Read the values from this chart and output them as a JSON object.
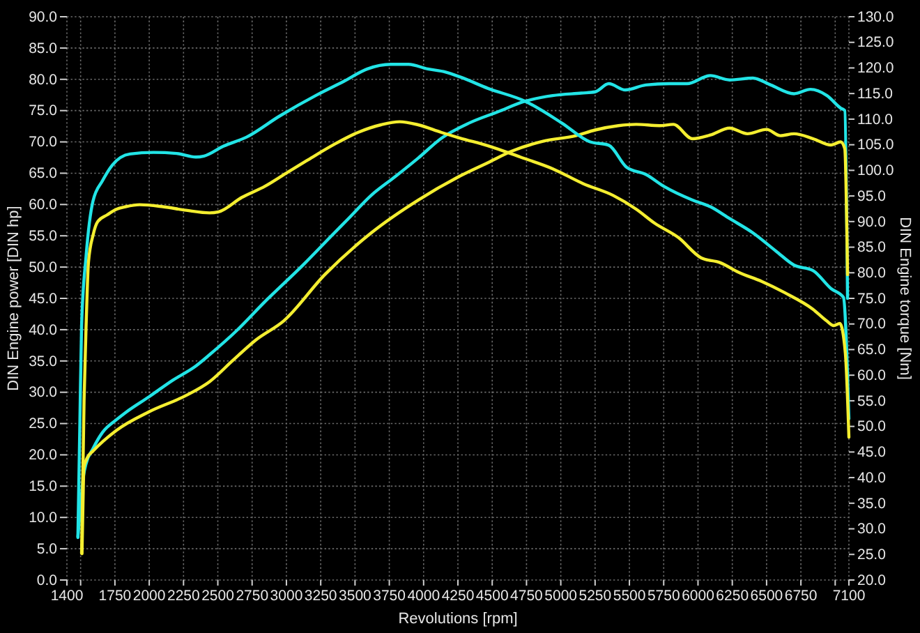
{
  "chart_data": {
    "type": "line",
    "xlabel": "Revolutions [rpm]",
    "ylabel": "DIN Engine power [DIN hp]",
    "y2label": "DIN Engine torque [Nm]",
    "xlim": [
      1400,
      7100
    ],
    "xticks": [
      1400,
      {
        "value": 1500,
        "label": null
      },
      1750,
      2000,
      2250,
      2500,
      2750,
      3000,
      3250,
      3500,
      3750,
      4000,
      4250,
      4500,
      4750,
      5000,
      5250,
      5500,
      5750,
      6000,
      6250,
      6500,
      6750,
      {
        "value": 7000,
        "label": null
      },
      7100
    ],
    "ylim": [
      0,
      90
    ],
    "yticks": [
      {
        "value": 0,
        "label": "0.0"
      },
      {
        "value": 5,
        "label": "5.0"
      },
      {
        "value": 10,
        "label": "10.0"
      },
      {
        "value": 15,
        "label": "15.0"
      },
      {
        "value": 20,
        "label": "20.0"
      },
      {
        "value": 25,
        "label": "25.0"
      },
      {
        "value": 30,
        "label": "30.0"
      },
      {
        "value": 35,
        "label": "35.0"
      },
      {
        "value": 40,
        "label": "40.0"
      },
      {
        "value": 45,
        "label": "45.0"
      },
      {
        "value": 50,
        "label": "50.0"
      },
      {
        "value": 55,
        "label": "55.0"
      },
      {
        "value": 60,
        "label": "60.0"
      },
      {
        "value": 65,
        "label": "65.0"
      },
      {
        "value": 70,
        "label": "70.0"
      },
      {
        "value": 75,
        "label": "75.0"
      },
      {
        "value": 80,
        "label": "80.0"
      },
      {
        "value": 85,
        "label": "85.0"
      },
      {
        "value": 90,
        "label": "90.0"
      }
    ],
    "y2lim": [
      20,
      130
    ],
    "y2ticks": [
      {
        "value": 20,
        "label": "20.0"
      },
      {
        "value": 25,
        "label": "25.0"
      },
      {
        "value": 30,
        "label": "30.0"
      },
      {
        "value": 35,
        "label": "35.0"
      },
      {
        "value": 40,
        "label": "40.0"
      },
      {
        "value": 45,
        "label": "45.0"
      },
      {
        "value": 50,
        "label": "50.0"
      },
      {
        "value": 55,
        "label": "55.0"
      },
      {
        "value": 60,
        "label": "60.0"
      },
      {
        "value": 65,
        "label": "65.0"
      },
      {
        "value": 70,
        "label": "70.0"
      },
      {
        "value": 75,
        "label": "75.0"
      },
      {
        "value": 80,
        "label": "80.0"
      },
      {
        "value": 85,
        "label": "85.0"
      },
      {
        "value": 90,
        "label": "90.0"
      },
      {
        "value": 95,
        "label": "95.0"
      },
      {
        "value": 100,
        "label": "100.0"
      },
      {
        "value": 105,
        "label": "105.0"
      },
      {
        "value": 110,
        "label": "110.0"
      },
      {
        "value": 115,
        "label": "115.0"
      },
      {
        "value": 120,
        "label": "120.0"
      },
      {
        "value": 125,
        "label": "125.0"
      },
      {
        "value": 130,
        "label": "130.0"
      }
    ],
    "grid": true,
    "series": [
      {
        "color": "#22e4e6",
        "x": [
          1480,
          1500,
          1520,
          1540,
          1590,
          1660,
          1760,
          1830,
          2000,
          2170,
          2340,
          2440,
          2640,
          2840,
          3120,
          3320,
          3450,
          3620,
          3790,
          3960,
          4130,
          4330,
          4540,
          4740,
          4940,
          5150,
          5250,
          5350,
          5470,
          5620,
          5790,
          5920,
          6090,
          6230,
          6400,
          6530,
          6700,
          6820,
          6940,
          7040,
          7070,
          7090
        ],
        "values": [
          6.8,
          12.0,
          16.5,
          18.6,
          21.0,
          23.6,
          25.6,
          26.8,
          29.3,
          31.9,
          34.2,
          36.0,
          39.9,
          44.4,
          50.3,
          54.8,
          57.7,
          61.5,
          64.4,
          67.4,
          70.6,
          73.0,
          74.8,
          76.5,
          77.4,
          77.8,
          78.0,
          79.3,
          78.3,
          79.1,
          79.3,
          79.3,
          80.6,
          79.9,
          80.2,
          79.1,
          77.7,
          78.4,
          77.4,
          75.4,
          75.0,
          45.0
        ]
      },
      {
        "color": "#f4ee30",
        "x": [
          1510,
          1517,
          1524,
          1550,
          1590,
          1760,
          2000,
          2270,
          2440,
          2610,
          2780,
          2980,
          3280,
          3620,
          3960,
          4270,
          4470,
          4640,
          4870,
          5110,
          5250,
          5420,
          5550,
          5720,
          5820,
          5960,
          6090,
          6230,
          6360,
          6500,
          6600,
          6700,
          6840,
          6970,
          7040,
          7070,
          7090
        ],
        "values": [
          4.2,
          12.0,
          18.0,
          19.6,
          20.6,
          23.9,
          26.9,
          29.5,
          31.7,
          35.1,
          38.4,
          41.4,
          48.8,
          55.5,
          60.7,
          64.6,
          66.7,
          68.5,
          70.1,
          71.0,
          71.9,
          72.6,
          72.8,
          72.6,
          72.8,
          70.5,
          71.1,
          72.2,
          71.3,
          72.0,
          71.0,
          71.3,
          70.5,
          69.5,
          70.0,
          68.9,
          48.8
        ]
      },
      {
        "color": "#22e4e6",
        "axis": "y2",
        "x": [
          1480,
          1495,
          1507,
          1540,
          1590,
          1660,
          1730,
          1860,
          2030,
          2200,
          2340,
          2400,
          2540,
          2710,
          2950,
          3220,
          3420,
          3590,
          3760,
          3890,
          4030,
          4160,
          4270,
          4470,
          4740,
          5010,
          5210,
          5350,
          5480,
          5620,
          5750,
          5960,
          6090,
          6230,
          6400,
          6570,
          6700,
          6840,
          6970,
          7060,
          7100
        ],
        "values": [
          28.4,
          51.5,
          69.7,
          83.3,
          94.0,
          98.0,
          101.0,
          103.2,
          103.5,
          103.3,
          102.6,
          102.8,
          104.7,
          106.5,
          110.6,
          114.7,
          117.4,
          119.8,
          120.7,
          120.7,
          119.8,
          119.2,
          118.2,
          116.0,
          113.5,
          109.2,
          105.6,
          104.9,
          100.6,
          99.2,
          96.9,
          94.2,
          92.9,
          90.6,
          87.8,
          84.2,
          81.5,
          80.4,
          76.9,
          75.2,
          51.5
        ]
      },
      {
        "color": "#f4ee30",
        "axis": "y2",
        "x": [
          1507,
          1525,
          1541,
          1557,
          1592,
          1625,
          1693,
          1760,
          1828,
          1930,
          2100,
          2270,
          2440,
          2506,
          2674,
          2844,
          3013,
          3148,
          3350,
          3521,
          3689,
          3825,
          3960,
          4130,
          4265,
          4469,
          4705,
          4942,
          5163,
          5382,
          5551,
          5683,
          5856,
          6024,
          6160,
          6295,
          6465,
          6633,
          6837,
          6938,
          6989,
          7034,
          7074,
          7100
        ],
        "values": [
          25.2,
          55.0,
          70.6,
          82.0,
          87.5,
          90.0,
          91.3,
          92.4,
          92.9,
          93.3,
          92.9,
          92.2,
          91.7,
          91.9,
          94.7,
          96.9,
          99.7,
          101.9,
          105.1,
          107.4,
          108.9,
          109.5,
          108.9,
          107.4,
          106.3,
          104.8,
          102.6,
          100.3,
          97.4,
          95.1,
          92.4,
          89.7,
          86.9,
          82.9,
          82.0,
          80.1,
          78.3,
          76.1,
          72.9,
          70.6,
          69.7,
          70.1,
          64.3,
          47.9
        ]
      }
    ]
  }
}
